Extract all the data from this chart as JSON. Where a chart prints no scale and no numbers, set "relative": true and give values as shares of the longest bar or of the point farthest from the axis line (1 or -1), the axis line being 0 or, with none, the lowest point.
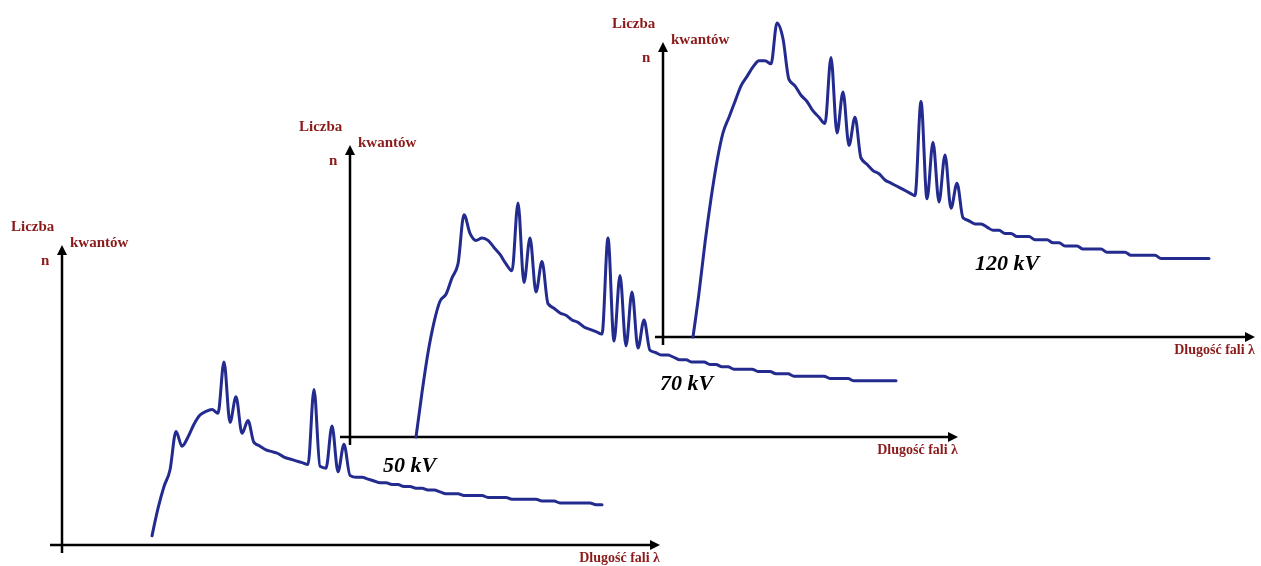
{
  "chart_data": [
    {
      "type": "line",
      "relative": true,
      "xlabel": "Dlugość fali  λ",
      "ylabel": "Liczba kwantów n",
      "categories": [
        null,
        null,
        null,
        null,
        null,
        null,
        null,
        null,
        null,
        null,
        null,
        null,
        null,
        null,
        null,
        null,
        null,
        null,
        null,
        null,
        null,
        null,
        null,
        null,
        null,
        null,
        null,
        null,
        null,
        null,
        null,
        null,
        null,
        null,
        null,
        null,
        null,
        null,
        null,
        null,
        null,
        null,
        null,
        null,
        null,
        null,
        null,
        null,
        null,
        null,
        null,
        null,
        null,
        null,
        null,
        null,
        null,
        null,
        null,
        null,
        null,
        null,
        null,
        null,
        null,
        null,
        null,
        null,
        null,
        null,
        null,
        null,
        null,
        null,
        null,
        null,
        null,
        null,
        null,
        null,
        null,
        null,
        null,
        null,
        null,
        null,
        null,
        null,
        null,
        null,
        null,
        null,
        null,
        null,
        null,
        null,
        null,
        null,
        null,
        null
      ],
      "series": [
        {
          "name": "50 kV",
          "color": "#232b8f",
          "values": [
            null,
            null,
            null,
            null,
            null,
            null,
            null,
            null,
            null,
            null,
            null,
            null,
            null,
            null,
            null,
            0.05,
            0.2,
            0.32,
            0.41,
            0.62,
            0.54,
            0.59,
            0.66,
            0.71,
            0.73,
            0.74,
            0.72,
            1,
            0.67,
            0.81,
            0.61,
            0.68,
            0.56,
            0.54,
            0.52,
            0.51,
            0.5,
            0.48,
            0.47,
            0.46,
            0.45,
            0.44,
            0.85,
            0.43,
            0.42,
            0.65,
            0.4,
            0.55,
            0.38,
            0.37,
            0.37,
            0.36,
            0.35,
            0.34,
            0.34,
            0.33,
            0.33,
            0.32,
            0.32,
            0.31,
            0.31,
            0.3,
            0.3,
            0.29,
            0.28,
            0.28,
            0.28,
            0.27,
            0.27,
            0.27,
            0.27,
            0.26,
            0.26,
            0.26,
            0.26,
            0.25,
            0.25,
            0.25,
            0.25,
            0.25,
            0.24,
            0.24,
            0.24,
            0.23,
            0.23,
            0.23,
            0.23,
            0.23,
            0.23,
            0.22,
            0.22,
            null,
            null,
            null,
            null,
            null,
            null,
            null,
            null,
            null
          ]
        }
      ]
    },
    {
      "type": "line",
      "relative": true,
      "xlabel": "Dlugość fali  λ",
      "ylabel": "Liczba kwantów n",
      "categories": [
        null,
        null,
        null,
        null,
        null,
        null,
        null,
        null,
        null,
        null,
        null,
        null,
        null,
        null,
        null,
        null,
        null,
        null,
        null,
        null,
        null,
        null,
        null,
        null,
        null,
        null,
        null,
        null,
        null,
        null,
        null,
        null,
        null,
        null,
        null,
        null,
        null,
        null,
        null,
        null,
        null,
        null,
        null,
        null,
        null,
        null,
        null,
        null,
        null,
        null,
        null,
        null,
        null,
        null,
        null,
        null,
        null,
        null,
        null,
        null,
        null,
        null,
        null,
        null,
        null,
        null,
        null,
        null,
        null,
        null,
        null,
        null,
        null,
        null,
        null,
        null,
        null,
        null,
        null,
        null,
        null,
        null,
        null,
        null,
        null,
        null,
        null,
        null,
        null,
        null,
        null,
        null,
        null,
        null,
        null,
        null,
        null,
        null,
        null,
        null,
        null
      ],
      "series": [
        {
          "name": "70 kV",
          "color": "#232b8f",
          "values": [
            null,
            null,
            null,
            null,
            null,
            null,
            null,
            null,
            null,
            null,
            null,
            0,
            0.19,
            0.36,
            0.49,
            0.58,
            0.61,
            0.68,
            0.74,
            0.95,
            0.87,
            0.84,
            0.85,
            0.84,
            0.81,
            0.78,
            0.74,
            0.71,
            1,
            0.66,
            0.85,
            0.62,
            0.75,
            0.57,
            0.55,
            0.53,
            0.52,
            0.5,
            0.49,
            0.47,
            0.46,
            0.45,
            0.44,
            0.85,
            0.41,
            0.69,
            0.39,
            0.62,
            0.38,
            0.5,
            0.37,
            0.36,
            0.35,
            0.35,
            0.34,
            0.33,
            0.33,
            0.32,
            0.32,
            0.32,
            0.31,
            0.31,
            0.3,
            0.3,
            0.29,
            0.29,
            0.29,
            0.29,
            0.28,
            0.28,
            0.28,
            0.27,
            0.27,
            0.27,
            0.26,
            0.26,
            0.26,
            0.26,
            0.26,
            0.26,
            0.25,
            0.25,
            0.25,
            0.25,
            0.24,
            0.24,
            0.24,
            0.24,
            0.24,
            0.24,
            0.24,
            0.24,
            null,
            null,
            null,
            null,
            null,
            null,
            null,
            null,
            null
          ]
        }
      ]
    },
    {
      "type": "line",
      "relative": true,
      "xlabel": "Dlugość fali  λ",
      "ylabel": "Liczba kwantów n",
      "categories": [
        null,
        null,
        null,
        null,
        null,
        null,
        null,
        null,
        null,
        null,
        null,
        null,
        null,
        null,
        null,
        null,
        null,
        null,
        null,
        null,
        null,
        null,
        null,
        null,
        null,
        null,
        null,
        null,
        null,
        null,
        null,
        null,
        null,
        null,
        null,
        null,
        null,
        null,
        null,
        null,
        null,
        null,
        null,
        null,
        null,
        null,
        null,
        null,
        null,
        null,
        null,
        null,
        null,
        null,
        null,
        null,
        null,
        null,
        null,
        null,
        null,
        null,
        null,
        null,
        null,
        null,
        null,
        null,
        null,
        null,
        null,
        null,
        null,
        null,
        null,
        null,
        null,
        null,
        null,
        null,
        null,
        null,
        null,
        null,
        null,
        null,
        null,
        null,
        null,
        null,
        null,
        null,
        null,
        null,
        null,
        null,
        null,
        null,
        null
      ],
      "series": [
        {
          "name": "120 kV",
          "color": "#232b8f",
          "values": [
            null,
            null,
            null,
            null,
            null,
            0,
            0.14,
            0.3,
            0.44,
            0.56,
            0.65,
            0.7,
            0.75,
            0.8,
            0.83,
            0.86,
            0.88,
            0.88,
            0.87,
            1,
            0.95,
            0.82,
            0.8,
            0.77,
            0.75,
            0.72,
            0.7,
            0.68,
            0.89,
            0.65,
            0.78,
            0.61,
            0.7,
            0.57,
            0.55,
            0.53,
            0.52,
            0.5,
            0.49,
            0.48,
            0.47,
            0.46,
            0.45,
            0.75,
            0.44,
            0.62,
            0.43,
            0.58,
            0.41,
            0.49,
            0.38,
            0.37,
            0.36,
            0.36,
            0.35,
            0.34,
            0.34,
            0.33,
            0.33,
            0.32,
            0.32,
            0.32,
            0.31,
            0.31,
            0.31,
            0.3,
            0.3,
            0.29,
            0.29,
            0.29,
            0.28,
            0.28,
            0.28,
            0.28,
            0.27,
            0.27,
            0.27,
            0.27,
            0.26,
            0.26,
            0.26,
            0.26,
            0.26,
            0.25,
            0.25,
            0.25,
            0.25,
            0.25,
            0.25,
            0.25,
            0.25,
            0.25,
            null,
            null,
            null,
            null,
            null,
            null,
            null
          ]
        }
      ]
    }
  ]
}
